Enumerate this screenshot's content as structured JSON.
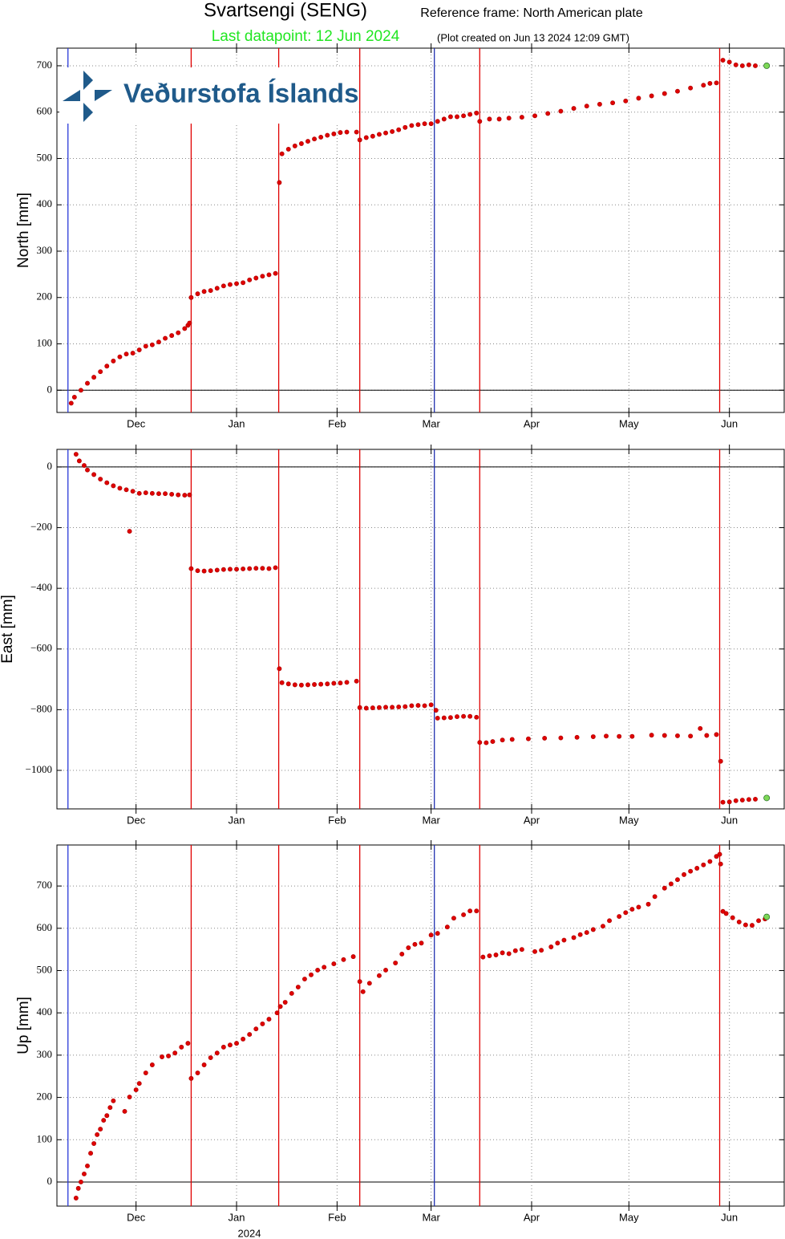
{
  "logo": "Veðurstofa Íslands",
  "events": [
    {
      "x": -52,
      "color": "#2a3ad8"
    },
    {
      "x": -14,
      "color": "#e00000"
    },
    {
      "x": 13,
      "color": "#e00000"
    },
    {
      "x": 38,
      "color": "#e00000"
    },
    {
      "x": 61,
      "color": "#2030b0"
    },
    {
      "x": 75,
      "color": "#e00000"
    },
    {
      "x": 149,
      "color": "#e00000"
    }
  ],
  "chart_data": [
    {
      "type": "scatter",
      "title": "Svartsengi (SENG)",
      "subtitle": "Reference frame: North American plate",
      "annotation": "Last datapoint: 12 Jun 2024",
      "note": "(Plot created on Jun 13 2024 12:09 GMT)",
      "ylabel": "North [mm]",
      "color": "#e00000",
      "highlight_last": "#7ed957",
      "grid": true,
      "zero_line": true,
      "xlim": [
        -55.4,
        168.9
      ],
      "xticks": [
        {
          "value": -31,
          "label": "Dec"
        },
        {
          "value": 0,
          "label": "Jan"
        },
        {
          "value": 31,
          "label": "Feb"
        },
        {
          "value": 60,
          "label": "Mar"
        },
        {
          "value": 91,
          "label": "Apr"
        },
        {
          "value": 121,
          "label": "May"
        },
        {
          "value": 152,
          "label": "Jun"
        }
      ],
      "ylim": [
        -48,
        738
      ],
      "yticks": [
        0,
        100,
        200,
        300,
        400,
        500,
        600,
        700
      ],
      "x": [
        -51,
        -50,
        -48,
        -46,
        -44,
        -42,
        -40,
        -38,
        -36,
        -34,
        -32,
        -30,
        -28,
        -26,
        -24,
        -22,
        -20,
        -18,
        -16,
        -15,
        -14.5,
        -14,
        -12,
        -10,
        -8,
        -6,
        -4,
        -2,
        0,
        2,
        4,
        6,
        8,
        10,
        12,
        13.2,
        14,
        16,
        18,
        20,
        22,
        24,
        26,
        28,
        30,
        32,
        34,
        37,
        38,
        40,
        42,
        44,
        46,
        48,
        50,
        52,
        54,
        56,
        58,
        60,
        62,
        64,
        66,
        68,
        70,
        72,
        74,
        75,
        78,
        81,
        84,
        88,
        92,
        96,
        100,
        104,
        108,
        112,
        116,
        120,
        124,
        128,
        132,
        136,
        140,
        144,
        146,
        148,
        150,
        152,
        154,
        156,
        158,
        160,
        163.5
      ],
      "values": [
        -28,
        -15,
        0,
        15,
        28,
        40,
        52,
        63,
        72,
        78,
        80,
        87,
        95,
        98,
        104,
        112,
        118,
        124,
        133,
        140,
        145,
        200,
        208,
        213,
        215,
        220,
        225,
        228,
        230,
        232,
        238,
        242,
        246,
        249,
        252,
        448,
        510,
        520,
        527,
        532,
        537,
        542,
        546,
        550,
        553,
        556,
        557,
        557,
        540,
        545,
        548,
        552,
        555,
        558,
        562,
        567,
        571,
        573,
        575,
        575,
        580,
        585,
        590,
        590,
        592,
        595,
        598,
        580,
        585,
        585,
        587,
        589,
        592,
        597,
        602,
        608,
        613,
        617,
        620,
        624,
        630,
        635,
        640,
        645,
        652,
        658,
        662,
        663,
        712,
        708,
        702,
        700,
        702,
        700,
        700
      ]
    },
    {
      "type": "scatter",
      "ylabel": "East [mm]",
      "color": "#e00000",
      "highlight_last": "#7ed957",
      "grid": true,
      "zero_line": true,
      "xlim": [
        -55.4,
        168.9
      ],
      "xticks": [
        {
          "value": -31,
          "label": "Dec"
        },
        {
          "value": 0,
          "label": "Jan"
        },
        {
          "value": 31,
          "label": "Feb"
        },
        {
          "value": 60,
          "label": "Mar"
        },
        {
          "value": 91,
          "label": "Apr"
        },
        {
          "value": 121,
          "label": "May"
        },
        {
          "value": 152,
          "label": "Jun"
        }
      ],
      "ylim": [
        -1127,
        58
      ],
      "yticks": [
        {
          "value": -1000,
          "label": "−1000"
        },
        {
          "value": -800,
          "label": "−800"
        },
        {
          "value": -600,
          "label": "−600"
        },
        {
          "value": -400,
          "label": "−400"
        },
        {
          "value": -200,
          "label": "−200"
        },
        0
      ],
      "x": [
        -49.5,
        -48.5,
        -47,
        -46,
        -44,
        -42,
        -40,
        -38,
        -36,
        -34,
        -33,
        -32,
        -30,
        -28,
        -26,
        -24,
        -22,
        -20,
        -18,
        -16,
        -14.5,
        -14,
        -12,
        -10,
        -8,
        -6,
        -4,
        -2,
        0,
        2,
        4,
        6,
        8,
        10,
        12,
        13.2,
        14,
        16,
        18,
        20,
        22,
        24,
        26,
        28,
        30,
        32,
        34,
        37,
        38,
        40,
        42,
        44,
        46,
        48,
        50,
        52,
        54,
        56,
        58,
        60,
        61.5,
        62,
        64,
        66,
        68,
        70,
        72,
        74,
        75,
        77,
        79,
        82,
        85,
        90,
        95,
        100,
        105,
        110,
        114,
        118,
        122,
        128,
        132,
        136,
        140,
        143,
        145,
        148,
        149.3,
        150,
        152,
        154,
        156,
        158,
        160,
        163.5
      ],
      "values": [
        42,
        20,
        5,
        -10,
        -25,
        -40,
        -52,
        -62,
        -70,
        -75,
        -212,
        -80,
        -87,
        -85,
        -87,
        -88,
        -88,
        -90,
        -92,
        -93,
        -92,
        -335,
        -342,
        -343,
        -342,
        -340,
        -338,
        -337,
        -337,
        -336,
        -335,
        -334,
        -334,
        -335,
        -332,
        -665,
        -711,
        -715,
        -718,
        -719,
        -718,
        -717,
        -716,
        -715,
        -713,
        -712,
        -710,
        -706,
        -793,
        -795,
        -794,
        -793,
        -792,
        -792,
        -791,
        -790,
        -787,
        -786,
        -787,
        -784,
        -802,
        -828,
        -827,
        -826,
        -823,
        -822,
        -822,
        -825,
        -908,
        -909,
        -905,
        -900,
        -898,
        -896,
        -894,
        -893,
        -891,
        -889,
        -887,
        -888,
        -888,
        -884,
        -885,
        -886,
        -887,
        -862,
        -885,
        -882,
        -970,
        -1105,
        -1104,
        -1100,
        -1098,
        -1096,
        -1095,
        -1091
      ]
    },
    {
      "type": "scatter",
      "ylabel": "Up [mm]",
      "xlabel": "2024",
      "color": "#e00000",
      "highlight_last": "#7ed957",
      "grid": true,
      "zero_line": true,
      "xlim": [
        -55.4,
        168.9
      ],
      "xticks": [
        {
          "value": -31,
          "label": "Dec"
        },
        {
          "value": 0,
          "label": "Jan"
        },
        {
          "value": 31,
          "label": "Feb"
        },
        {
          "value": 60,
          "label": "Mar"
        },
        {
          "value": 91,
          "label": "Apr"
        },
        {
          "value": 121,
          "label": "May"
        },
        {
          "value": 152,
          "label": "Jun"
        }
      ],
      "ylim": [
        -57,
        797
      ],
      "yticks": [
        0,
        100,
        200,
        300,
        400,
        500,
        600,
        700
      ],
      "x": [
        -49.5,
        -48.8,
        -48,
        -47,
        -46,
        -45,
        -44,
        -43,
        -42,
        -41,
        -40,
        -39,
        -38,
        -34.5,
        -33,
        -31,
        -30,
        -28,
        -26,
        -23,
        -21,
        -19,
        -17,
        -15,
        -14,
        -12,
        -10,
        -8,
        -6,
        -4,
        -2,
        0,
        2,
        4,
        6,
        8,
        10,
        12.5,
        13.5,
        15,
        17,
        19,
        21,
        23,
        25,
        27,
        30,
        33,
        36,
        38,
        39,
        41,
        44,
        46,
        49,
        51,
        53,
        55,
        57,
        60,
        62,
        65,
        67,
        70,
        72,
        74,
        76,
        78,
        80,
        82,
        84,
        86,
        88,
        92,
        94,
        97,
        99,
        101,
        104,
        106,
        108,
        110,
        113,
        115,
        118,
        120,
        122,
        124,
        127,
        129,
        132,
        134,
        136,
        138,
        140,
        142,
        144,
        146,
        148,
        149,
        149.3,
        150,
        151,
        153,
        155,
        157,
        159,
        161,
        163,
        163.5
      ],
      "values": [
        -38,
        -15,
        0,
        19,
        38,
        68,
        91,
        112,
        125,
        146,
        157,
        176,
        192,
        167,
        201,
        218,
        233,
        258,
        277,
        296,
        298,
        305,
        319,
        328,
        245,
        258,
        277,
        294,
        305,
        319,
        324,
        328,
        338,
        349,
        362,
        374,
        385,
        400,
        415,
        425,
        446,
        461,
        480,
        490,
        501,
        508,
        516,
        526,
        533,
        474,
        450,
        470,
        488,
        501,
        518,
        539,
        554,
        562,
        565,
        584,
        588,
        603,
        624,
        632,
        641,
        641,
        532,
        535,
        537,
        542,
        540,
        547,
        550,
        545,
        548,
        556,
        565,
        572,
        578,
        585,
        590,
        597,
        605,
        618,
        628,
        637,
        645,
        650,
        657,
        675,
        695,
        705,
        715,
        727,
        735,
        742,
        750,
        758,
        770,
        775,
        752,
        640,
        635,
        625,
        615,
        608,
        607,
        618,
        622,
        627
      ]
    }
  ]
}
